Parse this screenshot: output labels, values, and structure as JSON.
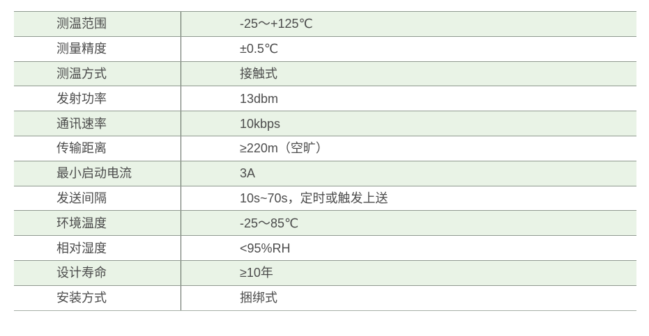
{
  "table": {
    "rows": [
      {
        "label": "测温范围",
        "value": "-25～+125℃"
      },
      {
        "label": "测量精度",
        "value": "±0.5℃"
      },
      {
        "label": "测温方式",
        "value": "接触式"
      },
      {
        "label": "发射功率",
        "value": "13dbm"
      },
      {
        "label": "通讯速率",
        "value": "10kbps"
      },
      {
        "label": "传输距离",
        "value": "≥220m（空旷）"
      },
      {
        "label": "最小启动电流",
        "value": "3A"
      },
      {
        "label": "发送间隔",
        "value": "10s~70s，定时或触发上送"
      },
      {
        "label": "环境温度",
        "value": "-25～85℃"
      },
      {
        "label": "相对湿度",
        "value": "<95%RH"
      },
      {
        "label": "设计寿命",
        "value": "≥10年"
      },
      {
        "label": "安装方式",
        "value": "捆绑式"
      }
    ],
    "colors": {
      "row_alt_bg": "#e9f3e6",
      "row_bg": "#ffffff",
      "horizontal_border": "#8f998f",
      "bottom_border": "#a6aea6",
      "column_divider": "#5c665c",
      "text": "#4c4c4c"
    }
  }
}
